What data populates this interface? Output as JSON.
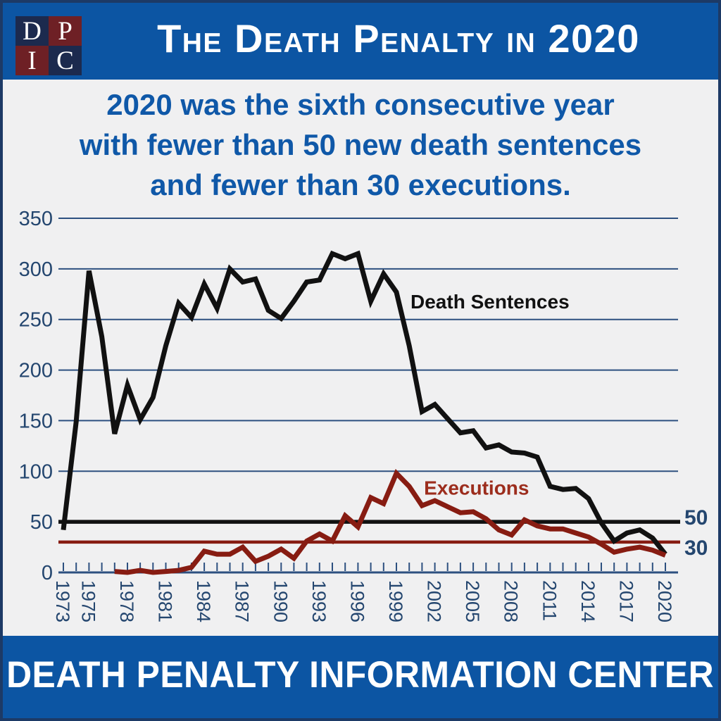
{
  "header": {
    "logo": {
      "letters": [
        "D",
        "P",
        "I",
        "C"
      ]
    },
    "title": "The Death Penalty in 2020"
  },
  "subtitle": {
    "lines": [
      "2020 was the sixth consecutive year",
      "with fewer than 50 new death sentences",
      "and fewer than 30 executions."
    ]
  },
  "footer": {
    "text": "DEATH PENALTY INFORMATION CENTER"
  },
  "colors": {
    "band_blue": "#0c55a3",
    "background": "#f0f0f1",
    "subtitle_blue": "#0f58a8",
    "axis_navy": "#24466f",
    "grid_navy": "#2d5080",
    "border_navy": "#1d3a66",
    "sentences_black": "#111111",
    "executions_red": "#871c12",
    "executions_label_red": "#9c2d1d",
    "logo_navy": "#1c2a4e",
    "logo_maroon": "#6e2025"
  },
  "chart_data": {
    "type": "line",
    "title": "",
    "xlabel": "",
    "ylabel": "",
    "x_range": [
      1973,
      2020
    ],
    "ylim": [
      0,
      350
    ],
    "grid": true,
    "y_ticks": [
      0,
      50,
      100,
      150,
      200,
      250,
      300,
      350
    ],
    "x_tick_labels": [
      1973,
      1975,
      1978,
      1981,
      1984,
      1987,
      1990,
      1993,
      1996,
      1999,
      2002,
      2005,
      2008,
      2011,
      2014,
      2017,
      2020
    ],
    "series": [
      {
        "name": "Death Sentences",
        "color_key": "sentences_black",
        "start_year": 1973,
        "values": [
          42,
          149,
          298,
          233,
          137,
          185,
          151,
          173,
          224,
          266,
          252,
          285,
          261,
          300,
          287,
          290,
          259,
          251,
          268,
          287,
          289,
          315,
          310,
          315,
          268,
          295,
          277,
          224,
          159,
          166,
          152,
          138,
          140,
          123,
          126,
          119,
          118,
          114,
          85,
          82,
          83,
          73,
          49,
          31,
          39,
          42,
          34,
          18
        ]
      },
      {
        "name": "Executions",
        "color_key": "executions_red",
        "start_year": 1977,
        "values": [
          1,
          0,
          2,
          0,
          1,
          2,
          5,
          21,
          18,
          18,
          25,
          11,
          16,
          23,
          14,
          31,
          38,
          31,
          56,
          45,
          74,
          68,
          98,
          85,
          66,
          71,
          65,
          59,
          60,
          53,
          42,
          37,
          52,
          46,
          43,
          43,
          39,
          35,
          28,
          20,
          23,
          25,
          22,
          17
        ]
      }
    ],
    "reference_lines": [
      {
        "label": "50",
        "value": 50,
        "color_key": "sentences_black"
      },
      {
        "label": "30",
        "value": 30,
        "color_key": "executions_red"
      }
    ],
    "annotations": [
      {
        "text": "Death Sentences",
        "year": 2000.1,
        "value": 261,
        "color_key": "sentences_black"
      },
      {
        "text": "Executions",
        "year": 2001.15,
        "value": 77,
        "color_key": "executions_label_red"
      }
    ],
    "legend_position": "inline-annotations"
  }
}
